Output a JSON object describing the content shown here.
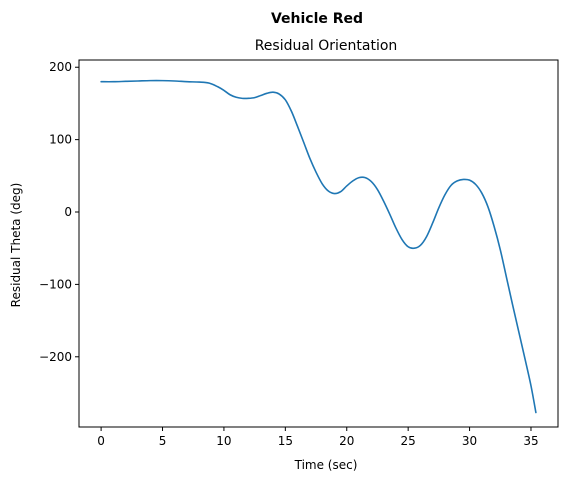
{
  "chart_data": {
    "type": "line",
    "suptitle": "Vehicle Red",
    "title": "Residual Orientation",
    "xlabel": "Time (sec)",
    "ylabel": "Residual Theta (deg)",
    "xlim": [
      -1.8,
      37.2
    ],
    "ylim": [
      -297,
      210
    ],
    "xticks": [
      0,
      5,
      10,
      15,
      20,
      25,
      30,
      35
    ],
    "xtick_labels": [
      "0",
      "5",
      "10",
      "15",
      "20",
      "25",
      "30",
      "35"
    ],
    "yticks": [
      200,
      100,
      0,
      -100,
      -200
    ],
    "ytick_labels": [
      "200",
      "100",
      "0",
      "−100",
      "−200"
    ],
    "grid": false,
    "legend": "none",
    "series": [
      {
        "color": "#1f77b4",
        "x": [
          0,
          1,
          2,
          3,
          4,
          5,
          6,
          7,
          8,
          8.8,
          9.5,
          10,
          10.5,
          11,
          11.5,
          12,
          12.5,
          13,
          13.5,
          14,
          14.5,
          15,
          15.5,
          16,
          16.5,
          17,
          17.5,
          18,
          18.5,
          19,
          19.5,
          20,
          20.5,
          21,
          21.5,
          22,
          22.5,
          23,
          23.5,
          24,
          24.5,
          25,
          25.5,
          26,
          26.5,
          27,
          27.5,
          28,
          28.5,
          29,
          29.5,
          30,
          30.5,
          31,
          31.5,
          32,
          32.5,
          33,
          33.5,
          34,
          34.5,
          35,
          35.4
        ],
        "y": [
          180,
          180,
          180.5,
          181,
          181.5,
          181.5,
          181,
          180,
          179.5,
          178,
          173,
          168,
          162,
          158.5,
          157,
          157,
          158,
          161,
          164,
          165.5,
          163,
          155,
          139,
          118,
          96,
          74,
          55,
          39,
          29,
          25.5,
          28,
          36,
          43,
          47.5,
          47.5,
          42,
          31,
          15,
          -3,
          -22,
          -38,
          -48,
          -50,
          -46,
          -34,
          -15,
          6,
          24,
          37,
          43,
          45,
          44,
          38,
          26,
          7,
          -20,
          -52,
          -90,
          -128,
          -165,
          -202,
          -240,
          -277
        ]
      }
    ]
  }
}
